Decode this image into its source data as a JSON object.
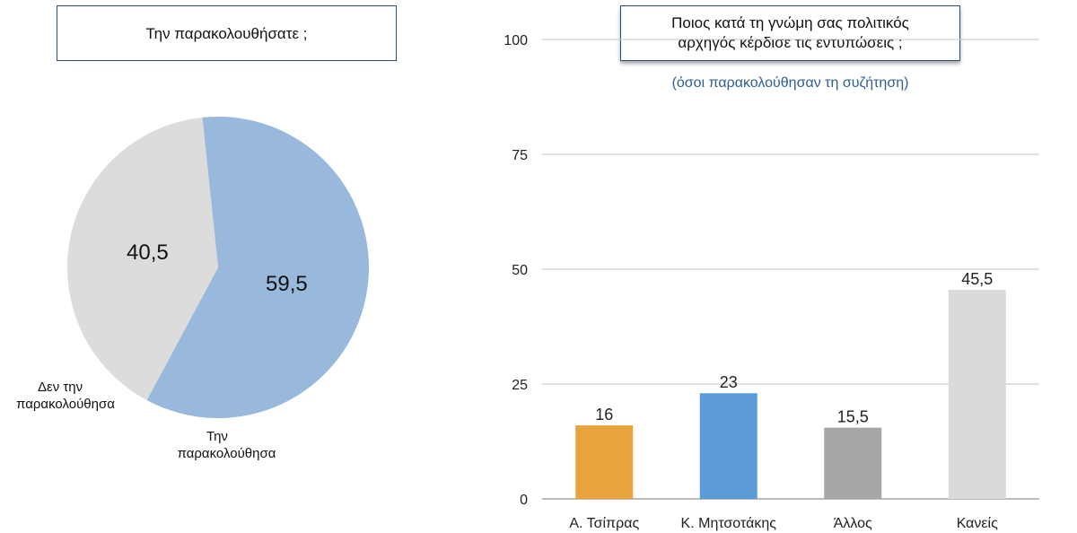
{
  "pie_title": "Την παρακολουθήσατε ;",
  "bar_title_line1": "Ποιος κατά τη γνώμη σας πολιτικός",
  "bar_title_line2": "αρχηγός κέρδισε τις εντυπώσεις ;",
  "bar_subtitle": "(όσοι παρακολούθησαν τη συζήτηση)",
  "pie_labels": {
    "did_not_watch_line1": "Δεν την",
    "did_not_watch_line2": "παρακολούθησα",
    "watched_line1": "Την",
    "watched_line2": "παρακολούθησα"
  },
  "chart_data": [
    {
      "type": "pie",
      "title": "Την παρακολουθήσατε ;",
      "slices": [
        {
          "label": "Την παρακολούθησα",
          "value": 59.5,
          "display": "59,5",
          "color": "#98b9dc"
        },
        {
          "label": "Δεν την παρακολούθησα",
          "value": 40.5,
          "display": "40,5",
          "color": "#dcdcdc"
        }
      ]
    },
    {
      "type": "bar",
      "title": "Ποιος κατά τη γνώμη σας πολιτικός αρχηγός κέρδισε τις εντυπώσεις ;",
      "subtitle": "(όσοι παρακολούθησαν τη συζήτηση)",
      "categories": [
        "Α. Τσίπρας",
        "Κ. Μητσοτάκης",
        "Άλλος",
        "Κανείς"
      ],
      "values": [
        16,
        23,
        15.5,
        45.5
      ],
      "value_labels": [
        "16",
        "23",
        "15,5",
        "45,5"
      ],
      "colors": [
        "#e8a33d",
        "#5b9bd5",
        "#a6a6a6",
        "#dadada"
      ],
      "ylim": [
        0,
        100
      ],
      "yticks": [
        0,
        25,
        50,
        75,
        100
      ],
      "grid": true
    }
  ]
}
